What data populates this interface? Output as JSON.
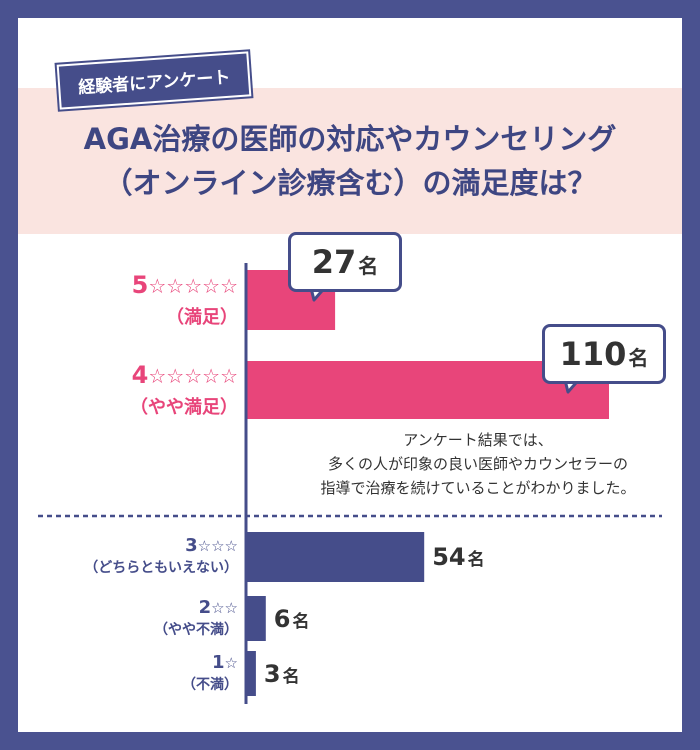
{
  "header": {
    "tag": "経験者にアンケート",
    "title_line_1": "AGA治療の医師の対応やカウンセリング",
    "title_line_2": "（オンライン診療含む）の満足度は？"
  },
  "note": {
    "line_1": "アンケート結果では、",
    "line_2": "多くの人が印象の良い医師やカウンセラーの",
    "line_3": "指導で治療を続けていることがわかりました。"
  },
  "colors": {
    "navy": "#454d8a",
    "pink": "#e8457a",
    "title_band": "#fae4e0",
    "border": "#4a5290"
  },
  "chart_data": {
    "type": "bar",
    "orientation": "horizontal",
    "title": "AGA治療の医師の対応やカウンセリング（オンライン診療含む）の満足度は？",
    "unit": "名",
    "categories": [
      {
        "rating": "5",
        "stars": "☆☆☆☆☆",
        "label": "（満足）",
        "value": 27,
        "value_text": "27",
        "color": "pink"
      },
      {
        "rating": "4",
        "stars": "☆☆☆☆☆",
        "label": "（やや満足）",
        "value": 110,
        "value_text": "110",
        "color": "pink"
      },
      {
        "rating": "3",
        "stars": "☆☆☆",
        "label": "（どちらともいえない）",
        "value": 54,
        "value_text": "54",
        "color": "navy"
      },
      {
        "rating": "2",
        "stars": "☆☆",
        "label": "（やや不満）",
        "value": 6,
        "value_text": "6",
        "color": "navy"
      },
      {
        "rating": "1",
        "stars": "☆",
        "label": "（不満）",
        "value": 3,
        "value_text": "3",
        "color": "navy"
      }
    ],
    "xlim": [
      0,
      125
    ],
    "grid": false,
    "legend": "none"
  }
}
